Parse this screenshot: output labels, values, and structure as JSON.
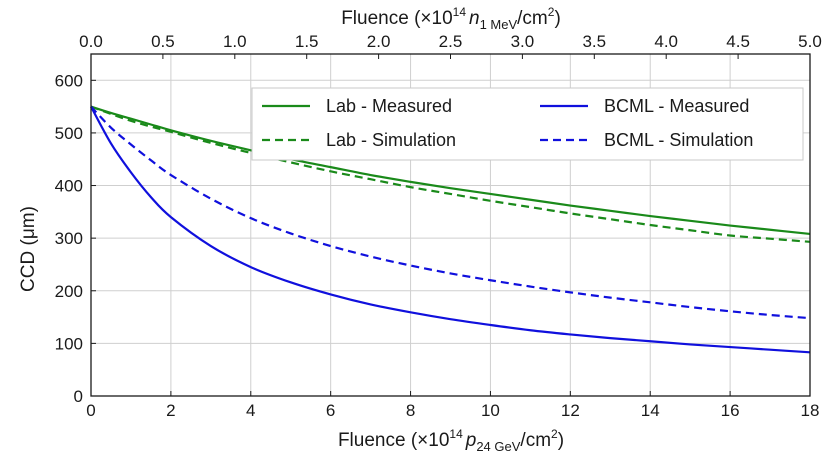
{
  "chart_data": {
    "type": "line",
    "xlabel": "Fluence (×10",
    "xlabel_sup": "14",
    "xlabel_particle": "p",
    "xlabel_sub": "24 GeV",
    "xlabel_unit": "/cm",
    "xlabel_unit_sup": "2",
    "xlabel_close": ")",
    "x2label": "Fluence (×10",
    "x2label_sup": "14",
    "x2label_particle": "n",
    "x2label_sub": "1 MeV",
    "x2label_unit": "/cm",
    "x2label_unit_sup": "2",
    "x2label_close": ")",
    "ylabel": "CCD (μm)",
    "xlim": [
      0,
      18
    ],
    "ylim": [
      0,
      650
    ],
    "x2lim": [
      0,
      5.0
    ],
    "xticks": [
      0,
      2,
      4,
      6,
      8,
      10,
      12,
      14,
      16,
      18
    ],
    "xtick_labels": [
      "0",
      "2",
      "4",
      "6",
      "8",
      "10",
      "12",
      "14",
      "16",
      "18"
    ],
    "yticks": [
      0,
      100,
      200,
      300,
      400,
      500,
      600
    ],
    "ytick_labels": [
      "0",
      "100",
      "200",
      "300",
      "400",
      "500",
      "600"
    ],
    "x2ticks": [
      0,
      0.5,
      1.0,
      1.5,
      2.0,
      2.5,
      3.0,
      3.5,
      4.0,
      4.5,
      5.0
    ],
    "x2tick_labels": [
      "0.0",
      "0.5",
      "1.0",
      "1.5",
      "2.0",
      "2.5",
      "3.0",
      "3.5",
      "4.0",
      "4.5",
      "5.0"
    ],
    "grid": true,
    "legend_position": "top-right",
    "x": [
      0,
      0.5,
      1,
      1.5,
      2,
      3,
      4,
      5,
      6,
      7,
      8,
      9,
      10,
      11,
      12,
      13,
      14,
      15,
      16,
      17,
      18
    ],
    "series": [
      {
        "name": "Lab - Measured",
        "color": "#1a8a1a",
        "dash": "solid",
        "values": [
          550,
          538,
          527,
          516,
          505,
          485,
          467,
          450,
          435,
          420,
          407,
          395,
          384,
          373,
          362,
          352,
          342,
          333,
          324,
          316,
          308
        ]
      },
      {
        "name": "Lab - Simulation",
        "color": "#1a8a1a",
        "dash": "dashed",
        "values": [
          550,
          536,
          523,
          512,
          502,
          481,
          462,
          444,
          427,
          412,
          397,
          384,
          371,
          359,
          347,
          336,
          325,
          315,
          305,
          299,
          293
        ]
      },
      {
        "name": "BCML - Measured",
        "color": "#1010dd",
        "dash": "solid",
        "values": [
          550,
          480,
          425,
          378,
          340,
          285,
          245,
          216,
          193,
          174,
          159,
          146,
          135,
          125,
          117,
          110,
          104,
          98,
          93,
          88,
          83
        ]
      },
      {
        "name": "BCML - Simulation",
        "color": "#1010dd",
        "dash": "dashed",
        "values": [
          550,
          510,
          478,
          448,
          420,
          375,
          338,
          309,
          285,
          265,
          248,
          233,
          220,
          208,
          197,
          187,
          178,
          169,
          161,
          154,
          148
        ]
      }
    ]
  }
}
